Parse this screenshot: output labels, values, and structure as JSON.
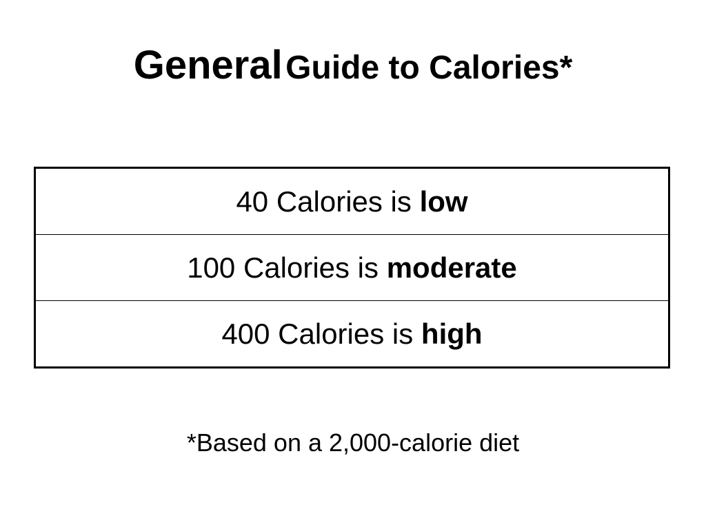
{
  "title": {
    "first_word": "General",
    "rest": "Guide to Calories*"
  },
  "table": {
    "rows": [
      {
        "text": "40 Calories is",
        "level": "low"
      },
      {
        "text": "100 Calories is",
        "level": "moderate"
      },
      {
        "text": "400 Calories is",
        "level": "high"
      }
    ]
  },
  "footnote": "*Based on a 2,000-calorie diet",
  "colors": {
    "text": "#000000",
    "background": "#ffffff",
    "border": "#000000"
  }
}
